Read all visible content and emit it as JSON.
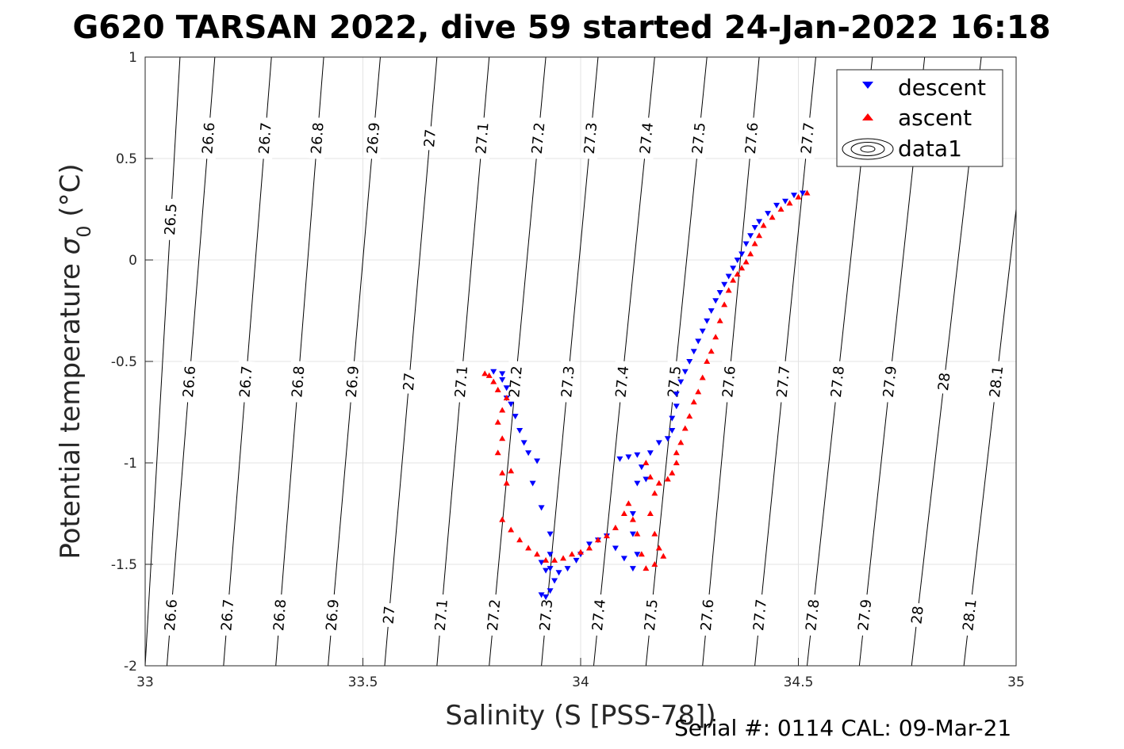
{
  "chart_data": {
    "type": "scatter",
    "title": "G620 TARSAN 2022, dive 59 started 24-Jan-2022 16:18",
    "xlabel": "Salinity (S [PSS-78])",
    "ylabel_main": "Potential temperature",
    "ylabel_sigma": "σ",
    "ylabel_sub": "0",
    "ylabel_unit": "(°C)",
    "footer": "Serial #: 0114  CAL: 09-Mar-21",
    "xlim": [
      33,
      35
    ],
    "ylim": [
      -2,
      1
    ],
    "grid": true,
    "legend_position": "top-right",
    "x_ticks": [
      {
        "value": 33,
        "label": "33"
      },
      {
        "value": 33.5,
        "label": "33.5"
      },
      {
        "value": 34,
        "label": "34"
      },
      {
        "value": 34.5,
        "label": "34.5"
      },
      {
        "value": 35,
        "label": "35"
      }
    ],
    "y_ticks": [
      {
        "value": 1,
        "label": "1"
      },
      {
        "value": 0.5,
        "label": "0.5"
      },
      {
        "value": 0,
        "label": "0"
      },
      {
        "value": -0.5,
        "label": "-0.5"
      },
      {
        "value": -1,
        "label": "-1"
      },
      {
        "value": -1.5,
        "label": "-1.5"
      },
      {
        "value": -2,
        "label": "-2"
      }
    ],
    "density_contours": {
      "name": "data1",
      "levels": [
        {
          "value": 26.5,
          "label": "26.5",
          "s_top": 33.08,
          "s_bottom": 33.0
        },
        {
          "value": 26.6,
          "label": "26.6",
          "s_top": 33.16,
          "s_bottom": 33.05
        },
        {
          "value": 26.7,
          "label": "26.7",
          "s_top": 33.29,
          "s_bottom": 33.18
        },
        {
          "value": 26.8,
          "label": "26.8",
          "s_top": 33.41,
          "s_bottom": 33.3
        },
        {
          "value": 26.9,
          "label": "26.9",
          "s_top": 33.54,
          "s_bottom": 33.42
        },
        {
          "value": 27.0,
          "label": "27",
          "s_top": 33.67,
          "s_bottom": 33.55
        },
        {
          "value": 27.1,
          "label": "27.1",
          "s_top": 33.79,
          "s_bottom": 33.67
        },
        {
          "value": 27.2,
          "label": "27.2",
          "s_top": 33.92,
          "s_bottom": 33.79
        },
        {
          "value": 27.3,
          "label": "27.3",
          "s_top": 34.04,
          "s_bottom": 33.91
        },
        {
          "value": 27.4,
          "label": "27.4",
          "s_top": 34.17,
          "s_bottom": 34.03
        },
        {
          "value": 27.5,
          "label": "27.5",
          "s_top": 34.29,
          "s_bottom": 34.15
        },
        {
          "value": 27.6,
          "label": "27.6",
          "s_top": 34.41,
          "s_bottom": 34.28
        },
        {
          "value": 27.7,
          "label": "27.7",
          "s_top": 34.54,
          "s_bottom": 34.4
        },
        {
          "value": 27.8,
          "label": "27.8",
          "s_top": 34.67,
          "s_bottom": 34.52
        },
        {
          "value": 27.9,
          "label": "27.9",
          "s_top": 34.79,
          "s_bottom": 34.64
        },
        {
          "value": 28.0,
          "label": "28",
          "s_top": 34.92,
          "s_bottom": 34.76
        },
        {
          "value": 28.1,
          "label": "28.1",
          "s_top": 35.04,
          "s_bottom": 34.88
        }
      ],
      "label_rows": [
        {
          "at_t": 0.6,
          "levels": [
            26.6,
            26.7,
            26.8,
            26.9,
            27.0,
            27.1,
            27.2,
            27.3,
            27.4,
            27.5,
            27.6,
            27.7
          ]
        },
        {
          "at_t": 0.2,
          "levels": [
            26.5
          ]
        },
        {
          "at_t": -0.6,
          "levels": [
            26.6,
            26.7,
            26.8,
            26.9,
            27.0,
            27.1,
            27.2,
            27.3,
            27.4,
            27.5,
            27.6,
            27.7,
            27.8,
            27.9,
            28.0,
            28.1
          ]
        },
        {
          "at_t": -1.75,
          "levels": [
            26.6,
            26.7,
            26.8,
            26.9,
            27.0,
            27.1,
            27.2,
            27.3,
            27.4,
            27.5,
            27.6,
            27.7,
            27.8,
            27.9,
            28.0,
            28.1
          ]
        }
      ]
    },
    "series": [
      {
        "name": "descent",
        "color": "#0000ff",
        "marker": "triangle-down",
        "points": [
          [
            34.51,
            0.33
          ],
          [
            34.49,
            0.32
          ],
          [
            34.47,
            0.29
          ],
          [
            34.45,
            0.27
          ],
          [
            34.43,
            0.23
          ],
          [
            34.41,
            0.19
          ],
          [
            34.4,
            0.16
          ],
          [
            34.39,
            0.12
          ],
          [
            34.38,
            0.08
          ],
          [
            34.37,
            0.03
          ],
          [
            34.36,
            0.0
          ],
          [
            34.35,
            -0.04
          ],
          [
            34.34,
            -0.08
          ],
          [
            34.33,
            -0.12
          ],
          [
            34.32,
            -0.16
          ],
          [
            34.31,
            -0.2
          ],
          [
            34.3,
            -0.25
          ],
          [
            34.29,
            -0.3
          ],
          [
            34.28,
            -0.35
          ],
          [
            34.27,
            -0.4
          ],
          [
            34.26,
            -0.45
          ],
          [
            34.25,
            -0.5
          ],
          [
            34.24,
            -0.55
          ],
          [
            34.23,
            -0.6
          ],
          [
            34.22,
            -0.66
          ],
          [
            34.22,
            -0.72
          ],
          [
            34.21,
            -0.78
          ],
          [
            34.21,
            -0.84
          ],
          [
            34.2,
            -0.88
          ],
          [
            34.18,
            -0.9
          ],
          [
            34.16,
            -0.95
          ],
          [
            34.13,
            -0.96
          ],
          [
            34.11,
            -0.97
          ],
          [
            34.09,
            -0.98
          ],
          [
            34.14,
            -1.02
          ],
          [
            34.15,
            -1.08
          ],
          [
            34.13,
            -1.1
          ],
          [
            34.12,
            -1.25
          ],
          [
            34.12,
            -1.35
          ],
          [
            34.13,
            -1.45
          ],
          [
            34.12,
            -1.52
          ],
          [
            34.1,
            -1.47
          ],
          [
            34.08,
            -1.42
          ],
          [
            34.06,
            -1.36
          ],
          [
            34.04,
            -1.38
          ],
          [
            34.02,
            -1.4
          ],
          [
            34.0,
            -1.45
          ],
          [
            33.99,
            -1.48
          ],
          [
            33.97,
            -1.52
          ],
          [
            33.95,
            -1.54
          ],
          [
            33.94,
            -1.58
          ],
          [
            33.93,
            -1.63
          ],
          [
            33.92,
            -1.66
          ],
          [
            33.91,
            -1.65
          ],
          [
            33.92,
            -1.53
          ],
          [
            33.93,
            -1.52
          ],
          [
            33.91,
            -1.49
          ],
          [
            33.93,
            -1.45
          ],
          [
            33.93,
            -1.35
          ],
          [
            33.91,
            -1.22
          ],
          [
            33.89,
            -1.1
          ],
          [
            33.9,
            -0.99
          ],
          [
            33.88,
            -0.95
          ],
          [
            33.87,
            -0.9
          ],
          [
            33.86,
            -0.84
          ],
          [
            33.85,
            -0.77
          ],
          [
            33.84,
            -0.71
          ],
          [
            33.83,
            -0.68
          ],
          [
            33.83,
            -0.63
          ],
          [
            33.82,
            -0.59
          ],
          [
            33.82,
            -0.56
          ],
          [
            33.8,
            -0.55
          ]
        ]
      },
      {
        "name": "ascent",
        "color": "#ff0000",
        "marker": "triangle-up",
        "points": [
          [
            34.52,
            0.33
          ],
          [
            34.5,
            0.31
          ],
          [
            34.48,
            0.28
          ],
          [
            34.46,
            0.25
          ],
          [
            34.44,
            0.21
          ],
          [
            34.42,
            0.17
          ],
          [
            34.41,
            0.12
          ],
          [
            34.4,
            0.08
          ],
          [
            34.39,
            0.03
          ],
          [
            34.38,
            -0.01
          ],
          [
            34.37,
            -0.04
          ],
          [
            34.36,
            -0.07
          ],
          [
            34.35,
            -0.1
          ],
          [
            34.34,
            -0.15
          ],
          [
            34.33,
            -0.22
          ],
          [
            34.32,
            -0.3
          ],
          [
            34.31,
            -0.38
          ],
          [
            34.3,
            -0.45
          ],
          [
            34.29,
            -0.5
          ],
          [
            34.28,
            -0.58
          ],
          [
            34.27,
            -0.65
          ],
          [
            34.26,
            -0.7
          ],
          [
            34.25,
            -0.77
          ],
          [
            34.24,
            -0.83
          ],
          [
            34.23,
            -0.9
          ],
          [
            34.22,
            -0.95
          ],
          [
            34.22,
            -1.0
          ],
          [
            34.21,
            -1.05
          ],
          [
            34.2,
            -1.08
          ],
          [
            34.18,
            -1.1
          ],
          [
            34.16,
            -1.07
          ],
          [
            34.15,
            -1.0
          ],
          [
            34.17,
            -1.15
          ],
          [
            34.16,
            -1.25
          ],
          [
            34.17,
            -1.35
          ],
          [
            34.18,
            -1.42
          ],
          [
            34.19,
            -1.46
          ],
          [
            34.17,
            -1.5
          ],
          [
            34.15,
            -1.52
          ],
          [
            34.14,
            -1.45
          ],
          [
            34.13,
            -1.35
          ],
          [
            34.12,
            -1.28
          ],
          [
            34.11,
            -1.2
          ],
          [
            34.1,
            -1.25
          ],
          [
            34.08,
            -1.32
          ],
          [
            34.06,
            -1.36
          ],
          [
            34.04,
            -1.38
          ],
          [
            34.02,
            -1.42
          ],
          [
            34.0,
            -1.44
          ],
          [
            33.98,
            -1.45
          ],
          [
            33.96,
            -1.47
          ],
          [
            33.94,
            -1.48
          ],
          [
            33.92,
            -1.48
          ],
          [
            33.9,
            -1.45
          ],
          [
            33.88,
            -1.42
          ],
          [
            33.86,
            -1.38
          ],
          [
            33.84,
            -1.33
          ],
          [
            33.82,
            -1.28
          ],
          [
            33.83,
            -1.1
          ],
          [
            33.84,
            -1.04
          ],
          [
            33.82,
            -1.05
          ],
          [
            33.81,
            -0.95
          ],
          [
            33.82,
            -0.88
          ],
          [
            33.81,
            -0.8
          ],
          [
            33.82,
            -0.74
          ],
          [
            33.83,
            -0.68
          ],
          [
            33.81,
            -0.64
          ],
          [
            33.8,
            -0.6
          ],
          [
            33.79,
            -0.57
          ],
          [
            33.78,
            -0.56
          ]
        ]
      }
    ]
  }
}
